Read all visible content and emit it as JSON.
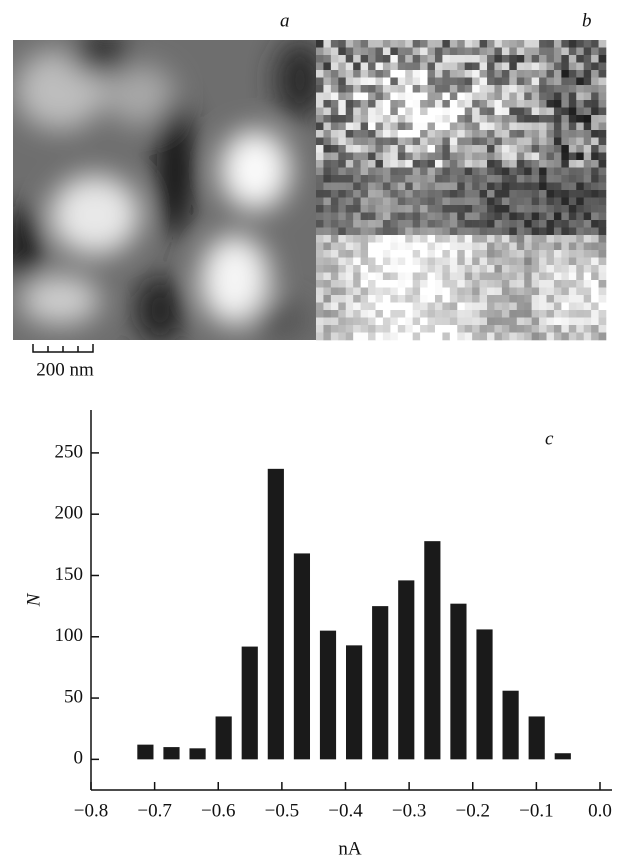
{
  "figure": {
    "panel_a": "a",
    "panel_b": "b",
    "scale_bar": "200 nm"
  },
  "chart_data": {
    "type": "histogram",
    "panel_label": "c",
    "x_label": "nA",
    "y_label": "N",
    "bins": [
      -0.735,
      -0.694,
      -0.653,
      -0.612,
      -0.571,
      -0.53,
      -0.489,
      -0.448,
      -0.407,
      -0.366,
      -0.325,
      -0.284,
      -0.243,
      -0.202,
      -0.161,
      -0.12,
      -0.079,
      -0.038
    ],
    "values": [
      12,
      10,
      9,
      35,
      92,
      237,
      168,
      105,
      93,
      125,
      146,
      178,
      127,
      106,
      56,
      35,
      5
    ],
    "color": "#1a1a1a",
    "xlim": [
      -0.8,
      0.0
    ],
    "xticks": [
      {
        "value": -0.8,
        "label": "−0.8"
      },
      {
        "value": -0.7,
        "label": "−0.7"
      },
      {
        "value": -0.6,
        "label": "−0.6"
      },
      {
        "value": -0.5,
        "label": "−0.5"
      },
      {
        "value": -0.4,
        "label": "−0.4"
      },
      {
        "value": -0.3,
        "label": "−0.3"
      },
      {
        "value": -0.2,
        "label": "−0.2"
      },
      {
        "value": -0.1,
        "label": "−0.1"
      },
      {
        "value": 0.0,
        "label": "0.0"
      }
    ],
    "ylim": [
      -25,
      285
    ],
    "yticks": [
      0,
      50,
      100,
      150,
      200,
      250
    ]
  }
}
